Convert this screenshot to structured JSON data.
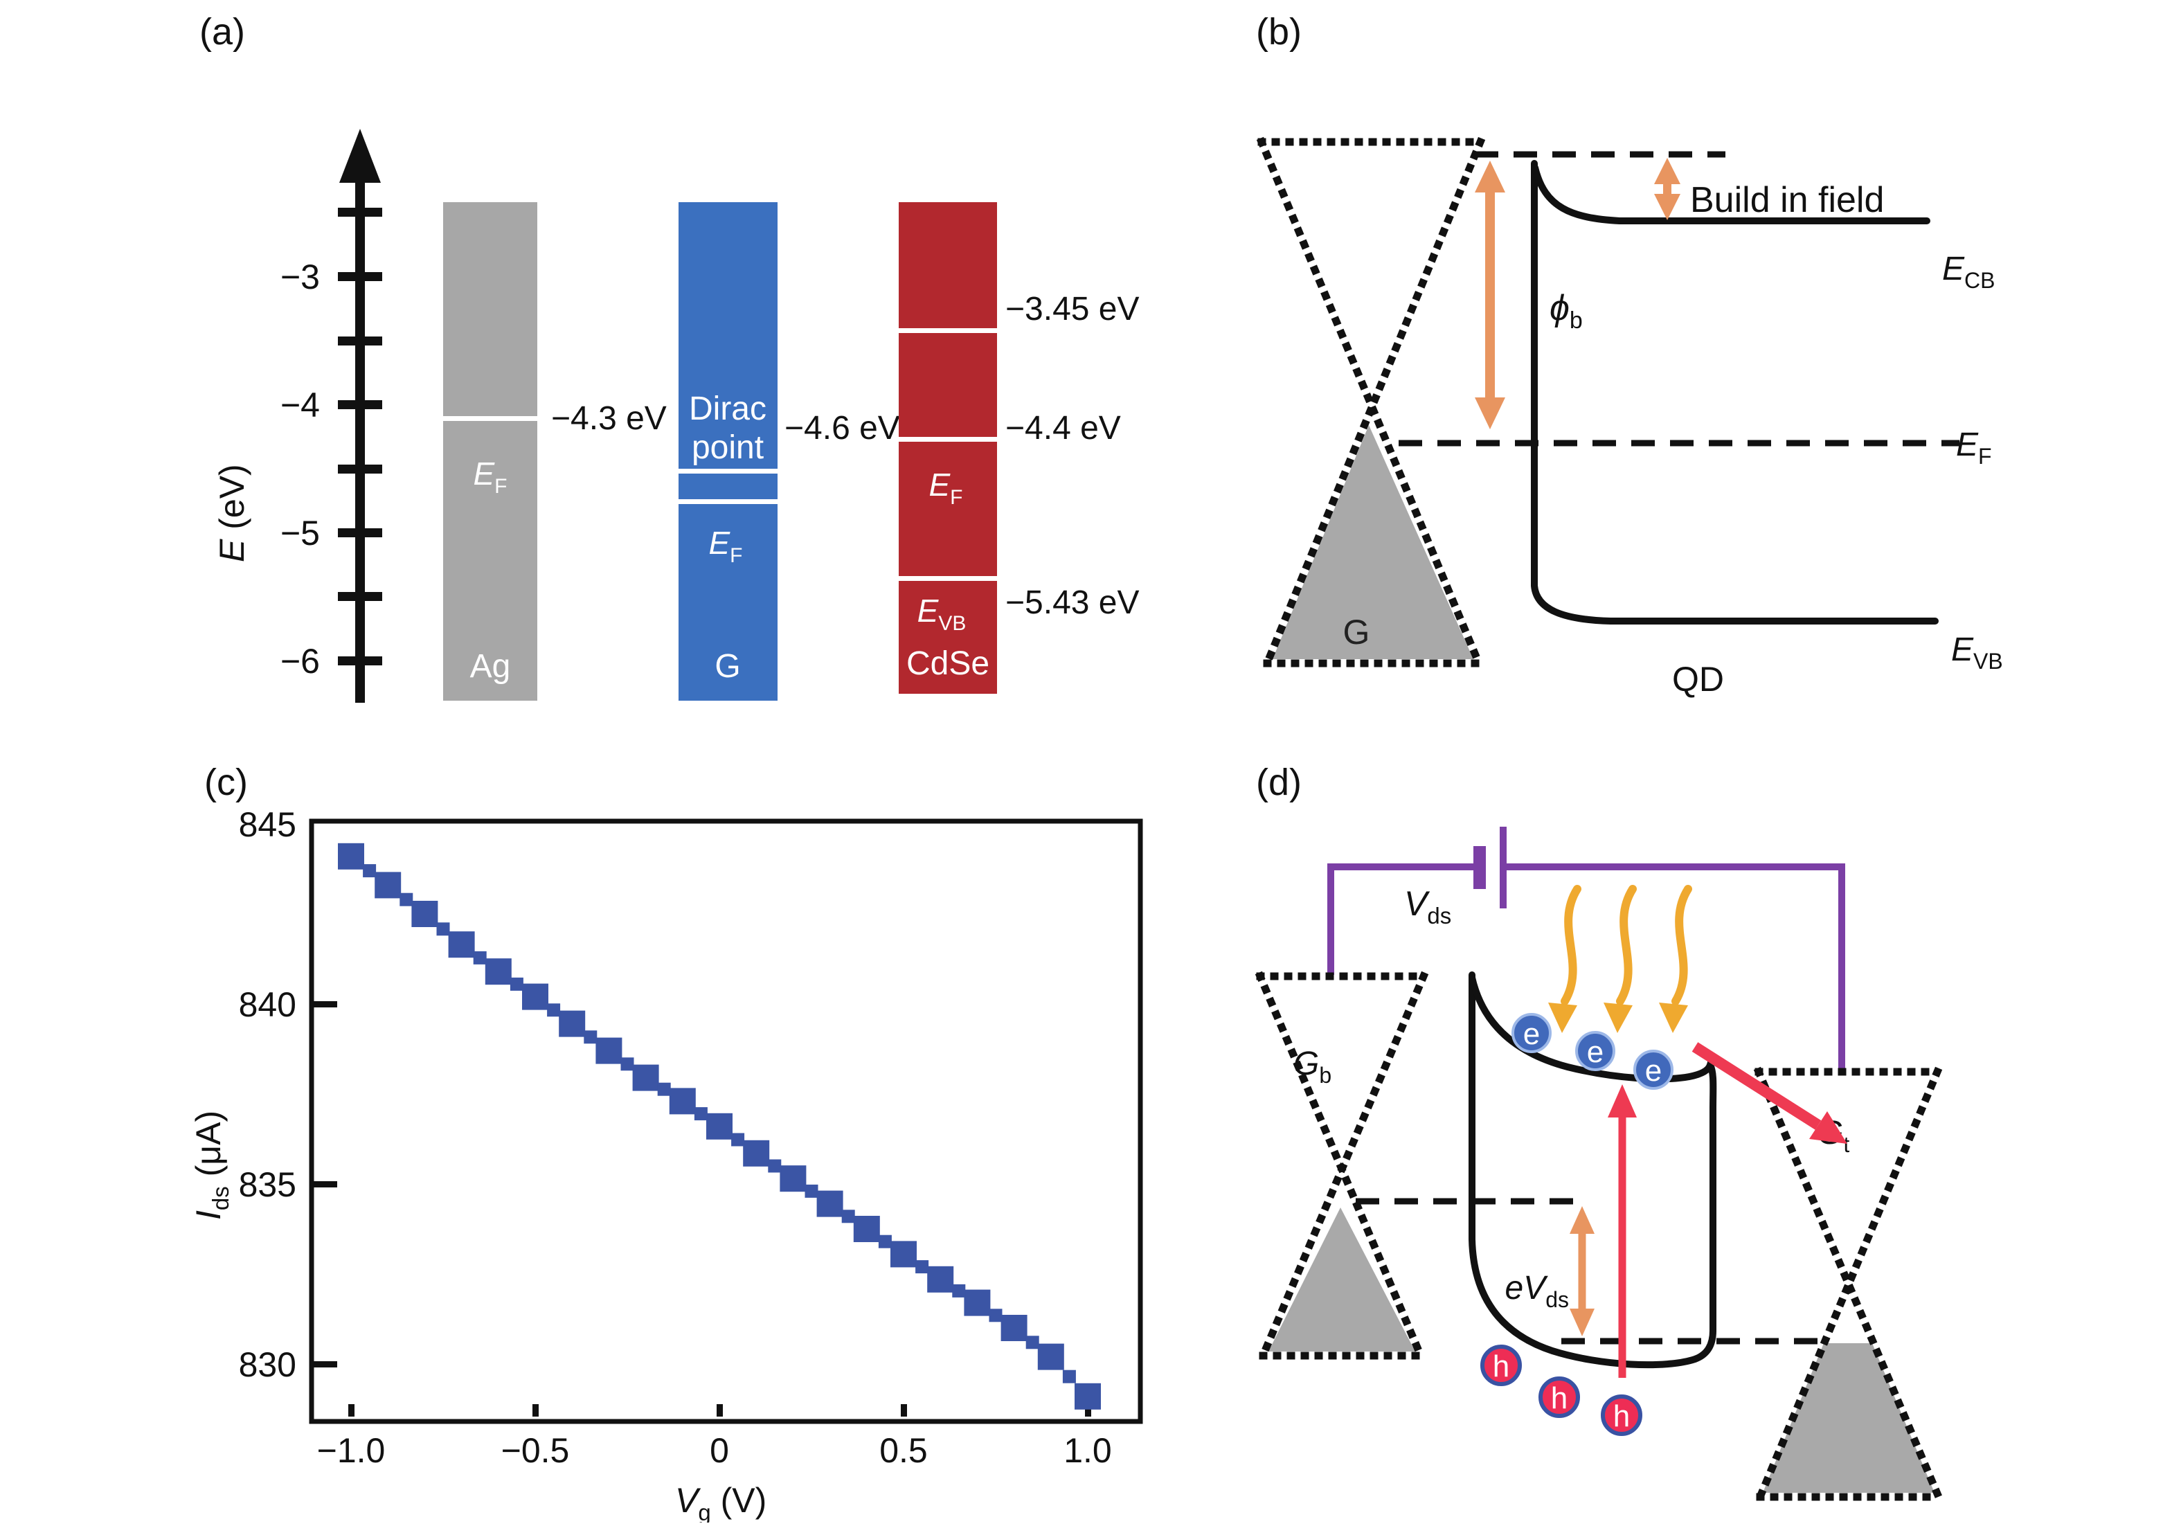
{
  "panels": {
    "a": {
      "label": "(a)",
      "axis_title": {
        "main": "E",
        "rest": " (eV)"
      },
      "tick_labels": [
        "−3",
        "−4",
        "−5",
        "−6"
      ],
      "ag": {
        "name": "Ag",
        "ef": {
          "main": "E",
          "sub": "F"
        },
        "level": "−4.3 eV"
      },
      "g": {
        "name": "G",
        "dirac1": "Dirac",
        "dirac2": "point",
        "ef": {
          "main": "E",
          "sub": "F"
        },
        "level": "−4.6 eV"
      },
      "cdse": {
        "name": "CdSe",
        "ef": {
          "main": "E",
          "sub": "F"
        },
        "evb": {
          "main": "E",
          "sub": "VB"
        },
        "level_cb": "−3.45 eV",
        "level_ef": "−4.4 eV",
        "level_vb": "−5.43 eV"
      }
    },
    "b": {
      "label": "(b)",
      "g_label": "G",
      "qd_label": "QD",
      "build_label": "Build in field",
      "phi": {
        "main": "ϕ",
        "sub": "b"
      },
      "e_cb": {
        "main": "E",
        "sub": "CB"
      },
      "e_f": {
        "main": "E",
        "sub": "F"
      },
      "e_vb": {
        "main": "E",
        "sub": "VB"
      }
    },
    "c": {
      "label": "(c)"
    },
    "d": {
      "label": "(d)",
      "vds": {
        "main": "V",
        "sub": "ds"
      },
      "evds": {
        "main": "eV",
        "sub": "ds"
      },
      "gb": {
        "main": "G",
        "sub": "b"
      },
      "gt": {
        "main": "G",
        "sub": "t"
      },
      "electron": "e",
      "hole": "h"
    }
  },
  "chart_data": {
    "type": "scatter",
    "title": "",
    "xlabel": {
      "main": "V",
      "sub": "g",
      "rest": " (V)"
    },
    "ylabel": {
      "main": "I",
      "sub": "ds",
      "rest": " (μA)"
    },
    "xlim": [
      -1.11,
      1.14
    ],
    "ylim": [
      828.4,
      845.1
    ],
    "x_ticks": [
      -1.0,
      -0.5,
      0,
      0.5,
      1.0
    ],
    "x_tick_labels": [
      "−1.0",
      "−0.5",
      "0",
      "0.5",
      "1.0"
    ],
    "y_ticks": [
      845,
      840,
      835,
      830
    ],
    "y_tick_labels": [
      "845",
      "840",
      "835",
      "830"
    ],
    "legend": "none",
    "grid": false,
    "marker": "square",
    "marker_color": "#3b55a5",
    "series_major": {
      "name": "Ids vs Vg (major points)",
      "x": [
        -1.0,
        -0.9,
        -0.8,
        -0.7,
        -0.6,
        -0.5,
        -0.4,
        -0.3,
        -0.2,
        -0.1,
        0.0,
        0.1,
        0.2,
        0.3,
        0.4,
        0.5,
        0.6,
        0.7,
        0.8,
        0.9,
        1.0
      ],
      "y": [
        844.1,
        843.3,
        842.5,
        841.65,
        840.9,
        840.2,
        839.45,
        838.7,
        837.95,
        837.3,
        836.6,
        835.85,
        835.15,
        834.45,
        833.75,
        833.05,
        832.35,
        831.7,
        831.0,
        830.2,
        829.1
      ]
    },
    "series_minor": {
      "name": "Ids vs Vg (intermediate points)",
      "x": [
        -0.95,
        -0.85,
        -0.75,
        -0.65,
        -0.55,
        -0.45,
        -0.35,
        -0.25,
        -0.15,
        -0.05,
        0.05,
        0.15,
        0.25,
        0.35,
        0.45,
        0.55,
        0.65,
        0.75,
        0.85,
        0.95
      ],
      "y": [
        843.7,
        842.9,
        842.08,
        841.28,
        840.55,
        839.83,
        839.08,
        838.33,
        837.63,
        836.95,
        836.23,
        835.5,
        834.8,
        834.1,
        833.4,
        832.7,
        832.03,
        831.35,
        830.6,
        829.65
      ]
    }
  },
  "colors": {
    "ink": "#1a1a1a",
    "bar_gray": "#a7a7a7",
    "bar_blue": "#3b70bf",
    "bar_red": "#b2282e",
    "marker_blue": "#3b55a5",
    "orange": "#e89560",
    "yellow": "#efa92f",
    "purple": "#7b3fa5",
    "red_arrow": "#ee3a52",
    "electron_fill": "#4169bb",
    "electron_ring": "#9db8e8",
    "hole_fill": "#ee2d55",
    "hole_ring": "#3952a3",
    "cone_gray": "#a9a9a9"
  }
}
